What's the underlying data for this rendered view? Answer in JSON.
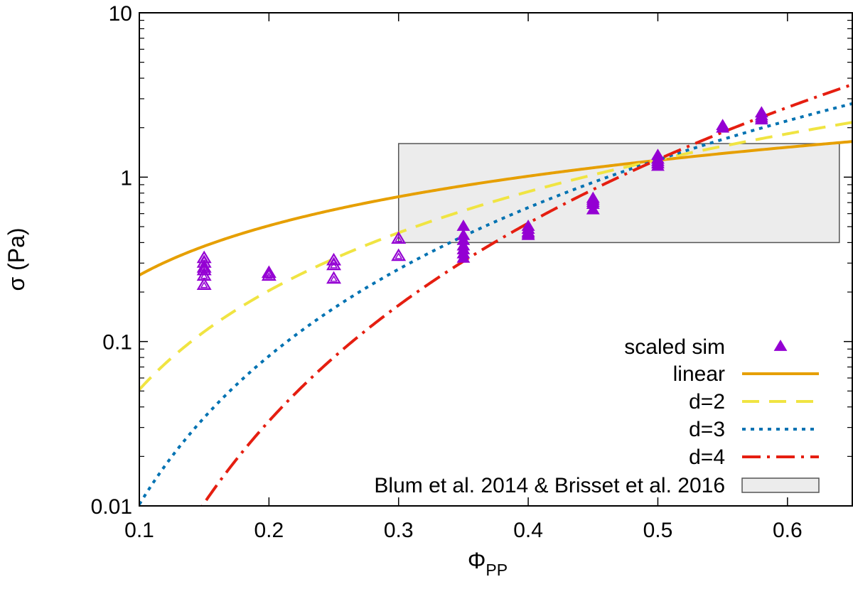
{
  "chart_data": {
    "type": "scatter",
    "xlabel": "Φ",
    "xlabel_sub": "PP",
    "ylabel": "σ (Pa)",
    "xlim": [
      0.1,
      0.65
    ],
    "ylim": [
      0.01,
      10
    ],
    "y_scale": "log",
    "x_ticks": [
      0.1,
      0.2,
      0.3,
      0.4,
      0.5,
      0.6
    ],
    "x_tick_labels": [
      "0.1",
      "0.2",
      "0.3",
      "0.4",
      "0.5",
      "0.6"
    ],
    "y_ticks": [
      0.01,
      0.1,
      1,
      10
    ],
    "y_tick_labels": [
      "0.01",
      "0.1",
      "1",
      "10"
    ],
    "grid": false,
    "legend_position": "bottom-right",
    "colors": {
      "sim": "#9400d3",
      "linear": "#e69f00",
      "d2": "#f0e442",
      "d3": "#0072b2",
      "d4": "#e51e10",
      "box_fill": "#ececec",
      "box_stroke": "#555555"
    },
    "series": [
      {
        "name": "scaled sim",
        "kind": "points",
        "points": [
          {
            "x": 0.15,
            "y": 0.32,
            "hollow": true
          },
          {
            "x": 0.15,
            "y": 0.3,
            "hollow": true
          },
          {
            "x": 0.15,
            "y": 0.28,
            "hollow": true
          },
          {
            "x": 0.15,
            "y": 0.27,
            "hollow": true
          },
          {
            "x": 0.15,
            "y": 0.25,
            "hollow": true
          },
          {
            "x": 0.15,
            "y": 0.22,
            "hollow": true
          },
          {
            "x": 0.2,
            "y": 0.26,
            "hollow": true
          },
          {
            "x": 0.2,
            "y": 0.25,
            "hollow": true
          },
          {
            "x": 0.25,
            "y": 0.31,
            "hollow": true
          },
          {
            "x": 0.25,
            "y": 0.29,
            "hollow": true
          },
          {
            "x": 0.25,
            "y": 0.24,
            "hollow": true
          },
          {
            "x": 0.3,
            "y": 0.42,
            "hollow": true
          },
          {
            "x": 0.3,
            "y": 0.33,
            "hollow": true
          },
          {
            "x": 0.35,
            "y": 0.5,
            "hollow": false
          },
          {
            "x": 0.35,
            "y": 0.44,
            "hollow": false
          },
          {
            "x": 0.35,
            "y": 0.41,
            "hollow": false
          },
          {
            "x": 0.35,
            "y": 0.38,
            "hollow": false
          },
          {
            "x": 0.35,
            "y": 0.36,
            "hollow": false
          },
          {
            "x": 0.35,
            "y": 0.34,
            "hollow": false
          },
          {
            "x": 0.35,
            "y": 0.32,
            "hollow": false
          },
          {
            "x": 0.4,
            "y": 0.5,
            "hollow": false
          },
          {
            "x": 0.4,
            "y": 0.48,
            "hollow": false
          },
          {
            "x": 0.4,
            "y": 0.46,
            "hollow": false
          },
          {
            "x": 0.4,
            "y": 0.45,
            "hollow": false
          },
          {
            "x": 0.4,
            "y": 0.44,
            "hollow": false
          },
          {
            "x": 0.45,
            "y": 0.74,
            "hollow": false
          },
          {
            "x": 0.45,
            "y": 0.72,
            "hollow": false
          },
          {
            "x": 0.45,
            "y": 0.7,
            "hollow": false
          },
          {
            "x": 0.45,
            "y": 0.68,
            "hollow": false
          },
          {
            "x": 0.45,
            "y": 0.63,
            "hollow": false
          },
          {
            "x": 0.5,
            "y": 1.35,
            "hollow": false
          },
          {
            "x": 0.5,
            "y": 1.28,
            "hollow": false
          },
          {
            "x": 0.5,
            "y": 1.24,
            "hollow": false
          },
          {
            "x": 0.5,
            "y": 1.2,
            "hollow": false
          },
          {
            "x": 0.5,
            "y": 1.16,
            "hollow": false
          },
          {
            "x": 0.55,
            "y": 2.05,
            "hollow": false
          },
          {
            "x": 0.55,
            "y": 1.98,
            "hollow": false
          },
          {
            "x": 0.58,
            "y": 2.45,
            "hollow": false
          },
          {
            "x": 0.58,
            "y": 2.35,
            "hollow": false
          },
          {
            "x": 0.58,
            "y": 2.28,
            "hollow": false
          },
          {
            "x": 0.58,
            "y": 2.22,
            "hollow": false
          }
        ]
      },
      {
        "name": "linear",
        "kind": "curve",
        "coef": 2.534,
        "exponent": 1,
        "dash": "",
        "color_key": "linear"
      },
      {
        "name": "d=2",
        "kind": "curve",
        "coef": 5.1,
        "exponent": 2,
        "dash": "24 14",
        "color_key": "d2"
      },
      {
        "name": "d=3",
        "kind": "curve",
        "coef": 10.2,
        "exponent": 3,
        "dash": "5 7",
        "color_key": "d3"
      },
      {
        "name": "d=4",
        "kind": "curve",
        "coef": 20.5,
        "exponent": 4,
        "dash": "26 9 4 9",
        "color_key": "d4"
      },
      {
        "name": "Blum et al. 2014 & Brisset et al. 2016",
        "kind": "box",
        "x_range": [
          0.3,
          0.64
        ],
        "y_range": [
          0.4,
          1.6
        ]
      }
    ]
  }
}
